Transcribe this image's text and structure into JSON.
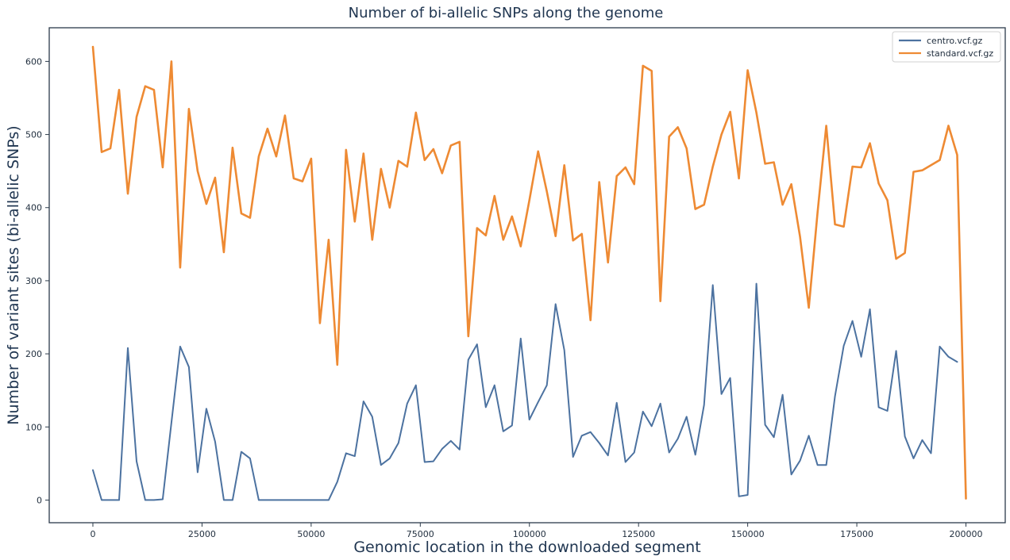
{
  "chart_data": {
    "type": "line",
    "title": "Number of bi-allelic SNPs along the genome",
    "xlabel": "Genomic location in the downloaded segment",
    "ylabel": "Number of variant sites (bi-allelic SNPs)",
    "xlim": [
      -10000,
      209000
    ],
    "ylim": [
      -31,
      646
    ],
    "xticks": [
      0,
      25000,
      50000,
      75000,
      100000,
      125000,
      150000,
      175000,
      200000
    ],
    "yticks": [
      0,
      100,
      200,
      300,
      400,
      500,
      600
    ],
    "grid": false,
    "legend_position": "top-right",
    "x": [
      0,
      2000,
      4000,
      6000,
      8000,
      10000,
      12000,
      14000,
      16000,
      18000,
      20000,
      22000,
      24000,
      26000,
      28000,
      30000,
      32000,
      34000,
      36000,
      38000,
      40000,
      42000,
      44000,
      46000,
      48000,
      50000,
      52000,
      54000,
      56000,
      58000,
      60000,
      62000,
      64000,
      66000,
      68000,
      70000,
      72000,
      74000,
      76000,
      78000,
      80000,
      82000,
      84000,
      86000,
      88000,
      90000,
      92000,
      94000,
      96000,
      98000,
      100000,
      102000,
      104000,
      106000,
      108000,
      110000,
      112000,
      114000,
      116000,
      118000,
      120000,
      122000,
      124000,
      126000,
      128000,
      130000,
      132000,
      134000,
      136000,
      138000,
      140000,
      142000,
      144000,
      146000,
      148000,
      150000,
      152000,
      154000,
      156000,
      158000,
      160000,
      162000,
      164000,
      166000,
      168000,
      170000,
      172000,
      174000,
      176000,
      178000,
      180000,
      182000,
      184000,
      186000,
      188000,
      190000,
      192000,
      194000,
      196000,
      198000,
      200000
    ],
    "series": [
      {
        "name": "centro.vcf.gz",
        "color": "#4c72a0",
        "values": [
          41,
          0,
          0,
          0,
          208,
          53,
          0,
          0,
          1,
          106,
          210,
          182,
          38,
          125,
          80,
          0,
          0,
          66,
          57,
          0,
          0,
          0,
          0,
          0,
          0,
          0,
          0,
          0,
          25,
          64,
          60,
          135,
          114,
          48,
          57,
          78,
          132,
          157,
          52,
          53,
          70,
          81,
          69,
          192,
          213,
          127,
          157,
          94,
          102,
          221,
          110,
          134,
          157,
          268,
          205,
          59,
          88,
          93,
          78,
          61,
          133,
          52,
          65,
          121,
          101,
          132,
          65,
          84,
          114,
          62,
          130,
          294,
          145,
          167,
          5,
          7,
          296,
          103,
          86,
          144,
          35,
          54,
          88,
          48,
          48,
          142,
          211,
          245,
          196,
          261,
          127,
          122,
          204,
          87,
          57,
          82,
          64,
          210,
          196,
          189,
          null
        ]
      },
      {
        "name": "standard.vcf.gz",
        "color": "#ee8a33",
        "values": [
          620,
          476,
          481,
          561,
          419,
          524,
          566,
          561,
          455,
          600,
          318,
          535,
          450,
          405,
          441,
          339,
          482,
          392,
          386,
          470,
          508,
          470,
          526,
          440,
          436,
          467,
          242,
          356,
          185,
          479,
          381,
          474,
          356,
          453,
          400,
          464,
          456,
          530,
          465,
          480,
          447,
          485,
          490,
          224,
          372,
          362,
          416,
          356,
          388,
          347,
          410,
          477,
          422,
          361,
          458,
          355,
          364,
          246,
          435,
          325,
          443,
          455,
          432,
          594,
          587,
          272,
          497,
          510,
          481,
          398,
          404,
          456,
          500,
          531,
          440,
          588,
          530,
          460,
          462,
          404,
          432,
          360,
          263,
          393,
          512,
          377,
          374,
          456,
          455,
          488,
          433,
          410,
          330,
          338,
          449,
          451,
          458,
          465,
          512,
          472,
          2
        ]
      }
    ]
  }
}
